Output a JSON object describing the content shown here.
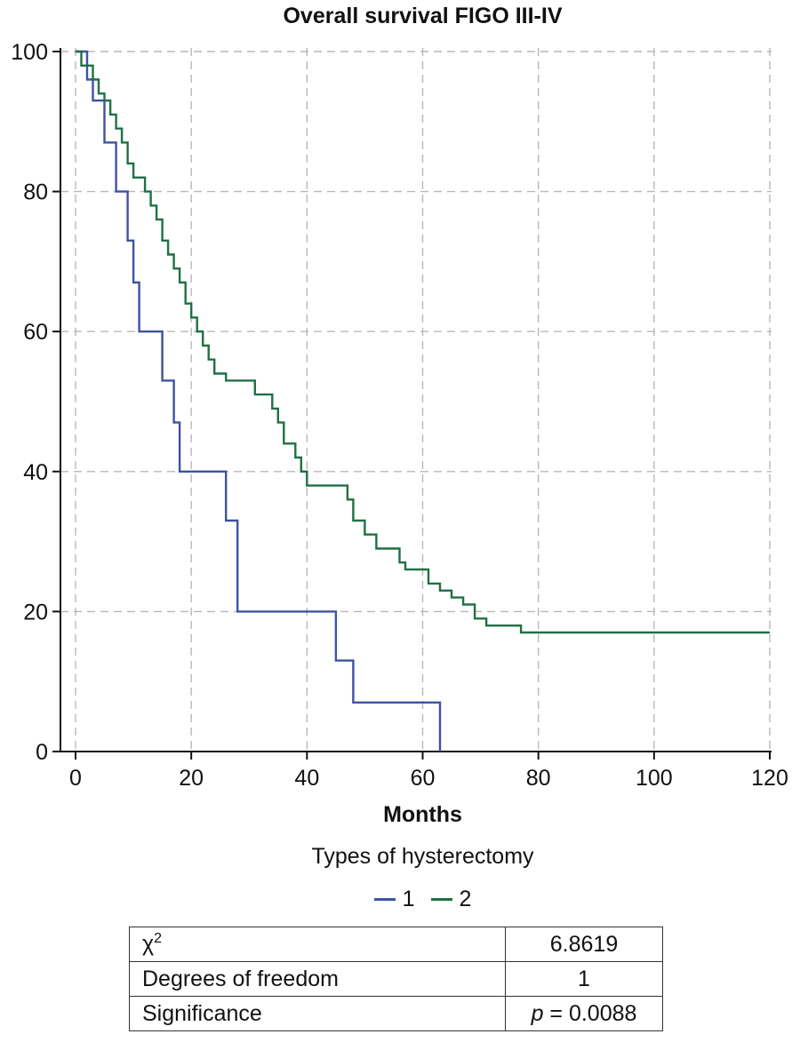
{
  "title": "Overall survival FIGO III-IV",
  "xlabel": "Months",
  "legend": {
    "title": "Types of hysterectomy",
    "items": [
      {
        "label": "1",
        "color": "#3d52a1"
      },
      {
        "label": "2",
        "color": "#1f7044"
      }
    ]
  },
  "stats_table": {
    "rows": [
      {
        "label_base": "χ",
        "label_sup": "2",
        "value": "6.8619"
      },
      {
        "label": "Degrees of freedom",
        "value": "1"
      },
      {
        "label": "Significance",
        "value_prefix": "p",
        "value": " = 0.0088"
      }
    ]
  },
  "chart_data": {
    "type": "line",
    "subtype": "kaplan-meier-step",
    "title": "Overall survival FIGO III-IV",
    "xlabel": "Months",
    "ylabel": "",
    "xlim": [
      0,
      120
    ],
    "ylim": [
      0,
      100
    ],
    "xticks": [
      0,
      20,
      40,
      60,
      80,
      100,
      120
    ],
    "yticks": [
      0,
      20,
      40,
      60,
      80,
      100
    ],
    "grid": "dashed",
    "grid_color": "#b8b8b8",
    "legend_title": "Types of hysterectomy",
    "legend_position": "bottom",
    "series": [
      {
        "name": "1",
        "color": "#3d52a1",
        "points": [
          [
            0,
            100
          ],
          [
            2,
            96
          ],
          [
            3,
            93
          ],
          [
            5,
            87
          ],
          [
            7,
            80
          ],
          [
            9,
            73
          ],
          [
            10,
            67
          ],
          [
            11,
            60
          ],
          [
            15,
            53
          ],
          [
            17,
            47
          ],
          [
            18,
            40
          ],
          [
            26,
            33
          ],
          [
            28,
            20
          ],
          [
            45,
            13
          ],
          [
            48,
            7
          ],
          [
            63,
            0
          ]
        ]
      },
      {
        "name": "2",
        "color": "#1f7044",
        "points": [
          [
            0,
            100
          ],
          [
            1,
            98
          ],
          [
            3,
            96
          ],
          [
            4,
            94
          ],
          [
            5,
            93
          ],
          [
            6,
            91
          ],
          [
            7,
            89
          ],
          [
            8,
            87
          ],
          [
            9,
            84
          ],
          [
            10,
            82
          ],
          [
            12,
            80
          ],
          [
            13,
            78
          ],
          [
            14,
            76
          ],
          [
            15,
            73
          ],
          [
            16,
            71
          ],
          [
            17,
            69
          ],
          [
            18,
            67
          ],
          [
            19,
            64
          ],
          [
            20,
            62
          ],
          [
            21,
            60
          ],
          [
            22,
            58
          ],
          [
            23,
            56
          ],
          [
            24,
            54
          ],
          [
            26,
            53
          ],
          [
            31,
            51
          ],
          [
            34,
            49
          ],
          [
            35,
            47
          ],
          [
            36,
            44
          ],
          [
            38,
            42
          ],
          [
            39,
            40
          ],
          [
            40,
            38
          ],
          [
            47,
            36
          ],
          [
            48,
            33
          ],
          [
            50,
            31
          ],
          [
            52,
            29
          ],
          [
            56,
            27
          ],
          [
            57,
            26
          ],
          [
            61,
            24
          ],
          [
            63,
            23
          ],
          [
            65,
            22
          ],
          [
            67,
            21
          ],
          [
            69,
            19
          ],
          [
            71,
            18
          ],
          [
            77,
            17
          ],
          [
            120,
            17
          ]
        ]
      }
    ],
    "stats": {
      "chi_square": 6.8619,
      "degrees_of_freedom": 1,
      "p_value": 0.0088
    }
  }
}
